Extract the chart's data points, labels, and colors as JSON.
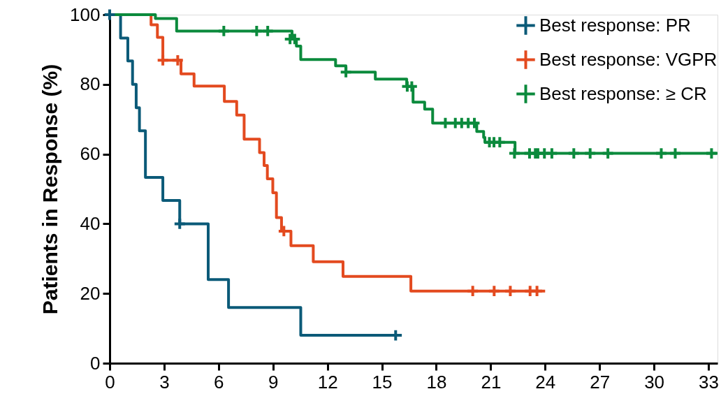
{
  "chart_data": {
    "type": "step",
    "ylabel": "Patients in Response (%)",
    "xlim": [
      0,
      33.5
    ],
    "xticks": [
      0,
      3,
      6,
      9,
      12,
      15,
      18,
      21,
      24,
      27,
      30,
      33
    ],
    "ylim": [
      0,
      100
    ],
    "yticks": [
      0,
      20,
      40,
      60,
      80,
      100
    ],
    "grid": false,
    "legend": "top right",
    "series": [
      {
        "name": "Best response: PR",
        "marker": "none",
        "color": "#0b5a78",
        "x": [
          0,
          0.6,
          1.0,
          1.26,
          1.46,
          1.64,
          1.97,
          2.93,
          3.86,
          5.43,
          6.55,
          10.53,
          16.1
        ],
        "values": [
          100,
          93.3,
          86.7,
          80,
          73.3,
          66.7,
          53.3,
          46.7,
          40,
          24,
          16,
          8,
          8
        ]
      },
      {
        "name": "Best response: VGPR",
        "marker": "none",
        "color": "#e34a1f",
        "x": [
          0,
          2.28,
          2.63,
          2.93,
          3.93,
          4.65,
          6.32,
          7.0,
          7.41,
          8.26,
          8.51,
          8.69,
          8.99,
          9.19,
          9.47,
          9.99,
          11.22,
          12.86,
          16.6,
          24.0
        ],
        "values": [
          100,
          97.1,
          93.5,
          86.9,
          83.0,
          79.5,
          75.1,
          71.2,
          64.3,
          60.4,
          56.7,
          52.9,
          48.9,
          41.8,
          37.9,
          33.7,
          29.1,
          24.9,
          20.7,
          20.7
        ]
      },
      {
        "name": "Best response: ≥ CR",
        "marker": "none",
        "color": "#0b8a3c",
        "x": [
          0,
          2.52,
          3.69,
          10.05,
          10.29,
          10.53,
          12.45,
          13.02,
          14.64,
          16.37,
          16.72,
          17.36,
          17.8,
          20.23,
          20.61,
          20.68,
          22.34,
          33.5
        ],
        "values": [
          100,
          98.9,
          95.3,
          93.0,
          91.0,
          87.1,
          85.3,
          83.5,
          81.5,
          79.4,
          74.9,
          72.9,
          68.9,
          66.5,
          64.8,
          63.4,
          60.2,
          60.2
        ]
      },
      {
        "type": "scatter",
        "marker": "cross",
        "color": "#0b5a78",
        "x": [
          0,
          3.86,
          15.76
        ],
        "values": [
          100,
          40,
          8
        ]
      },
      {
        "type": "scatter",
        "marker": "cross",
        "color": "#e34a1f",
        "x": [
          2.93,
          3.75,
          9.6,
          20.01,
          21.19,
          22.08,
          23.17,
          23.55
        ],
        "values": [
          86.9,
          86.9,
          37.9,
          20.7,
          20.7,
          20.7,
          20.7,
          20.7
        ]
      },
      {
        "type": "scatter",
        "marker": "cross",
        "color": "#0b8a3c",
        "x": [
          6.29,
          8.1,
          8.71,
          9.94,
          10.2,
          13.02,
          16.4,
          16.65,
          18.5,
          19.05,
          19.4,
          19.76,
          20.1,
          20.93,
          21.18,
          21.5,
          22.31,
          23.14,
          23.46,
          23.6,
          23.96,
          24.37,
          25.58,
          26.48,
          27.46,
          30.4,
          31.17,
          33.17
        ],
        "values": [
          95.3,
          95.3,
          95.3,
          93.0,
          93.0,
          83.5,
          79.4,
          79.4,
          68.9,
          68.9,
          68.9,
          68.9,
          68.9,
          63.4,
          63.4,
          63.4,
          60.2,
          60.2,
          60.2,
          60.2,
          60.2,
          60.2,
          60.2,
          60.2,
          60.2,
          60.2,
          60.2,
          60.2
        ]
      }
    ]
  }
}
